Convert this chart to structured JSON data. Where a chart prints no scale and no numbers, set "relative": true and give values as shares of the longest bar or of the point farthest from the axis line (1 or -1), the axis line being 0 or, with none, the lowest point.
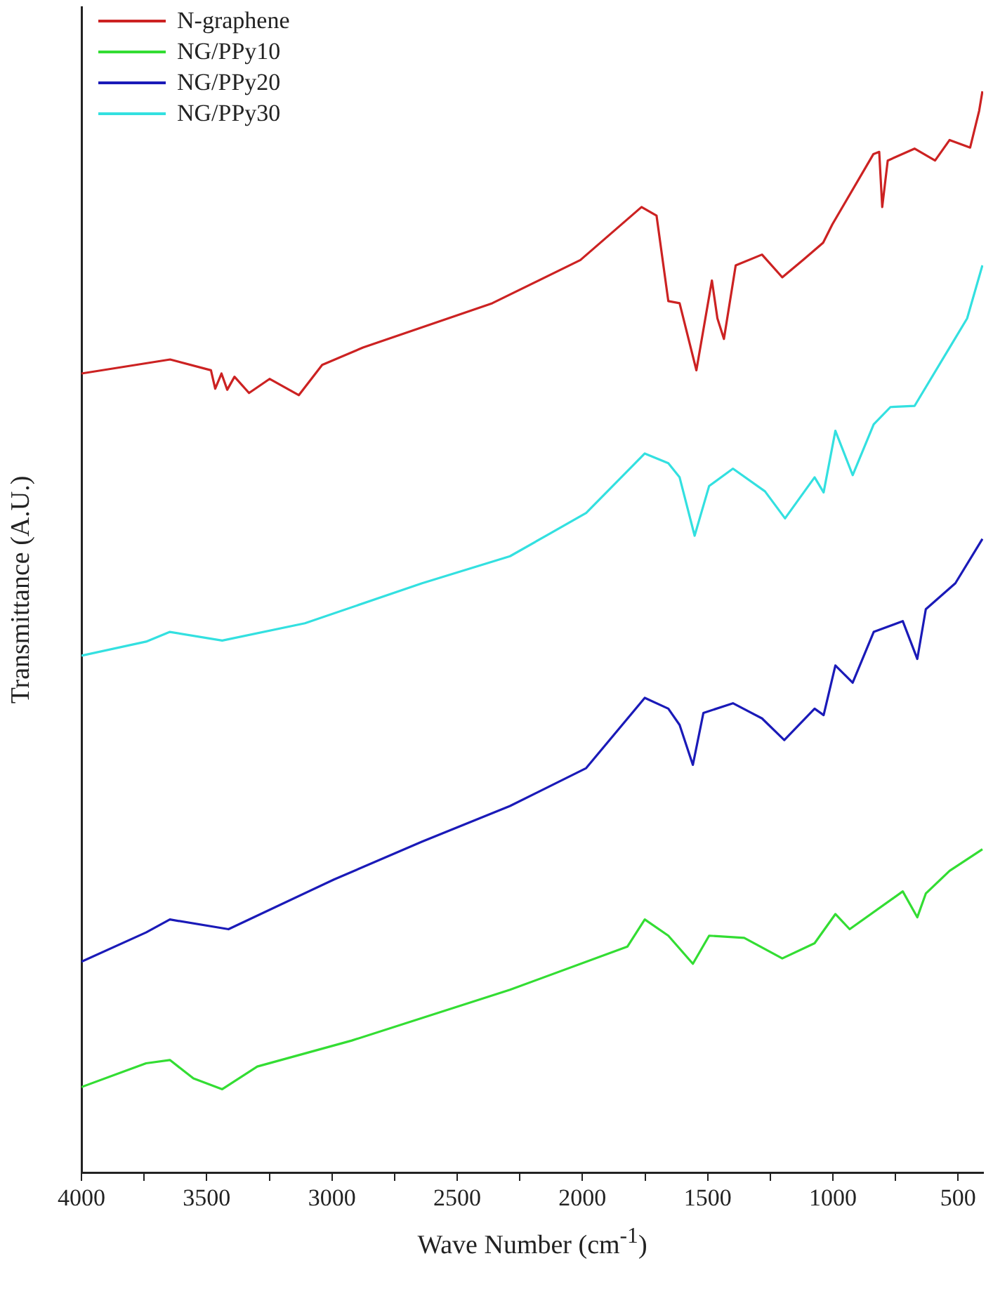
{
  "chart_data": {
    "type": "line",
    "relative": true,
    "xlabel": "Wave Number (cm$^{-1}$)",
    "ylabel": "Transmittance (A.U.)",
    "legend": "top left",
    "marker": "none",
    "grid": false,
    "xlim": [
      4000,
      400
    ],
    "xticks": [
      4000,
      {
        "value": 3750,
        "label": null
      },
      3500,
      {
        "value": 3250,
        "label": null
      },
      3000,
      {
        "value": 2750,
        "label": null
      },
      2500,
      {
        "value": 2250,
        "label": null
      },
      2000,
      {
        "value": 1750,
        "label": null
      },
      1500,
      {
        "value": 1250,
        "label": null
      },
      1000,
      {
        "value": 750,
        "label": null
      },
      500
    ],
    "series": [
      {
        "name": "N-graphene",
        "color": "#cc2222",
        "x": [
          4000,
          3646,
          3483,
          3466,
          3441,
          3418,
          3389,
          3331,
          3249,
          3132,
          3039,
          2876,
          2360,
          2008,
          1764,
          1704,
          1657,
          1612,
          1545,
          1483,
          1461,
          1435,
          1388,
          1283,
          1202,
          1119,
          1039,
          1002,
          838,
          815,
          803,
          781,
          674,
          592,
          534,
          452,
          416,
          403
        ],
        "values": [
          0.739,
          0.752,
          0.742,
          0.725,
          0.739,
          0.724,
          0.736,
          0.721,
          0.734,
          0.719,
          0.747,
          0.763,
          0.804,
          0.844,
          0.893,
          0.885,
          0.806,
          0.804,
          0.742,
          0.825,
          0.79,
          0.771,
          0.839,
          0.849,
          0.828,
          0.844,
          0.86,
          0.877,
          0.942,
          0.944,
          0.893,
          0.936,
          0.947,
          0.936,
          0.955,
          0.948,
          0.982,
          1
        ]
      },
      {
        "name": "NG/PPy10",
        "color": "#33dd33",
        "x": [
          4000,
          3742,
          3647,
          3553,
          3438,
          3298,
          2921,
          2289,
          1820,
          1751,
          1657,
          1559,
          1494,
          1354,
          1202,
          1073,
          990,
          933,
          721,
          663,
          629,
          534,
          403
        ],
        "values": [
          0.079,
          0.101,
          0.104,
          0.087,
          0.077,
          0.098,
          0.122,
          0.169,
          0.209,
          0.234,
          0.219,
          0.193,
          0.219,
          0.217,
          0.198,
          0.212,
          0.239,
          0.225,
          0.26,
          0.236,
          0.258,
          0.279,
          0.299
        ]
      },
      {
        "name": "NG/PPy20",
        "color": "#1a1ab8",
        "x": [
          4000,
          3742,
          3647,
          3413,
          2992,
          2640,
          2289,
          1985,
          1751,
          1657,
          1612,
          1559,
          1517,
          1399,
          1283,
          1194,
          1073,
          1037,
          990,
          921,
          837,
          721,
          663,
          629,
          511,
          403
        ],
        "values": [
          0.195,
          0.222,
          0.234,
          0.225,
          0.271,
          0.306,
          0.339,
          0.374,
          0.439,
          0.429,
          0.414,
          0.377,
          0.425,
          0.434,
          0.42,
          0.4,
          0.429,
          0.423,
          0.469,
          0.453,
          0.5,
          0.51,
          0.475,
          0.521,
          0.545,
          0.586
        ]
      },
      {
        "name": "NG/PPy30",
        "color": "#33e0e0",
        "x": [
          4000,
          3742,
          3647,
          3438,
          3108,
          2640,
          2289,
          1985,
          1751,
          1657,
          1612,
          1552,
          1494,
          1399,
          1271,
          1191,
          1073,
          1037,
          990,
          921,
          837,
          770,
          674,
          534,
          464,
          403
        ],
        "values": [
          0.478,
          0.491,
          0.5,
          0.492,
          0.508,
          0.545,
          0.57,
          0.61,
          0.665,
          0.656,
          0.643,
          0.589,
          0.635,
          0.651,
          0.63,
          0.605,
          0.643,
          0.629,
          0.686,
          0.645,
          0.692,
          0.708,
          0.709,
          0.763,
          0.79,
          0.839
        ]
      }
    ]
  }
}
